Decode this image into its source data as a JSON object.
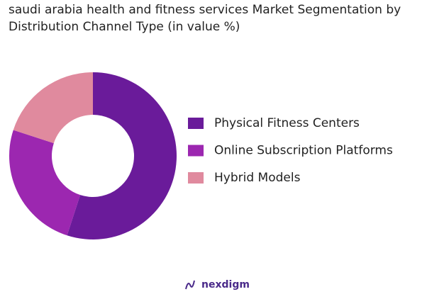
{
  "chart_data": {
    "type": "pie",
    "title": "saudi arabia health and fitness services  Market Segmentation by Distribution Channel Type (in value %)",
    "categories": [
      "Physical Fitness Centers",
      "Online Subscription Platforms",
      "Hybrid Models"
    ],
    "values": [
      55,
      25,
      20
    ],
    "colors": [
      "#6a1b9a",
      "#9c27b0",
      "#e08a9e"
    ],
    "donut": true,
    "brand": "nexdigm"
  }
}
